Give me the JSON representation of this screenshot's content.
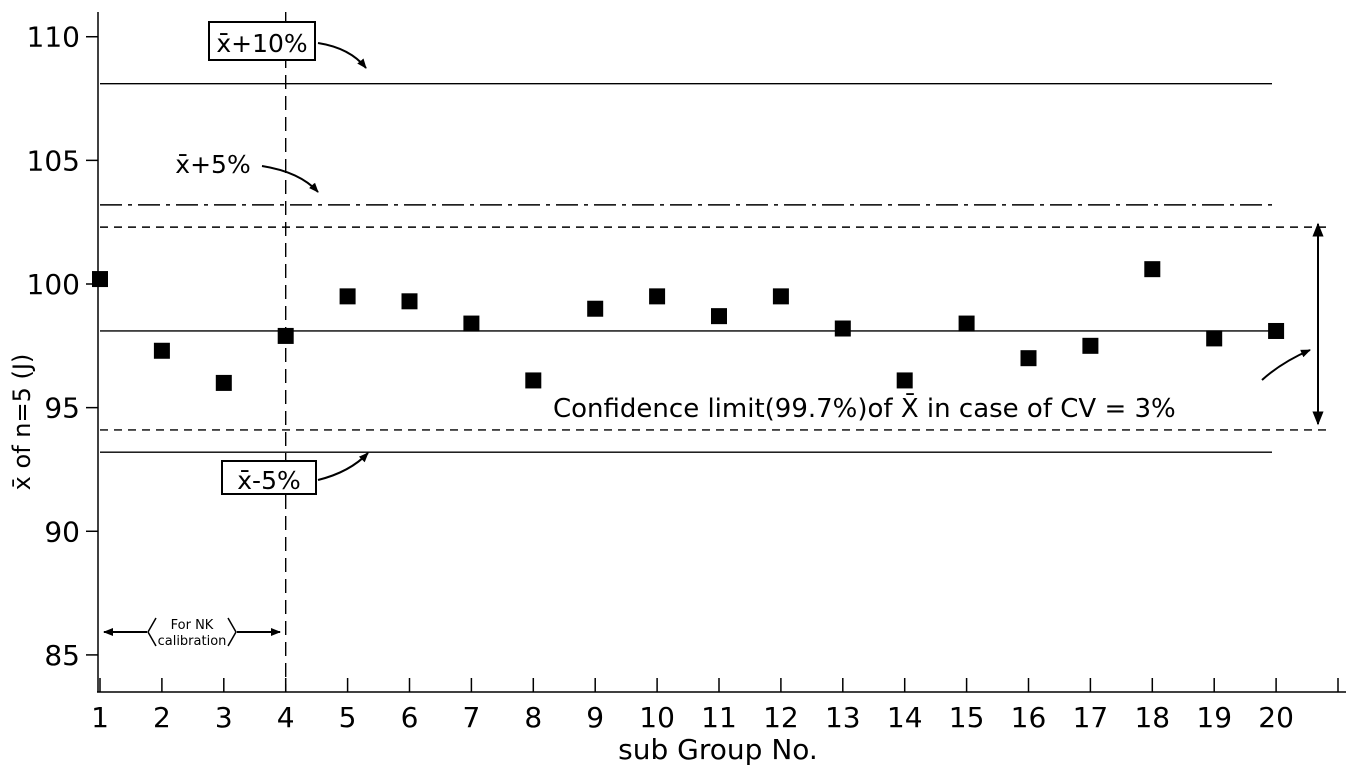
{
  "chart_data": {
    "type": "scatter",
    "xlabel": "sub Group No.",
    "ylabel": "x̄ of n=5 (J)",
    "x_ticks": [
      1,
      2,
      3,
      4,
      5,
      6,
      7,
      8,
      9,
      10,
      11,
      12,
      13,
      14,
      15,
      16,
      17,
      18,
      19,
      20
    ],
    "y_ticks": [
      85,
      90,
      95,
      100,
      105,
      110
    ],
    "xlim": [
      1,
      21
    ],
    "ylim": [
      83.5,
      111
    ],
    "grid": false,
    "legend": "none",
    "series": [
      {
        "x": [
          1,
          2,
          3,
          4,
          5,
          6,
          7,
          8,
          9,
          10,
          11,
          12,
          13,
          14,
          15,
          16,
          17,
          18,
          19,
          20
        ],
        "y": [
          100.2,
          97.3,
          96.0,
          97.9,
          99.5,
          99.3,
          98.4,
          96.1,
          99.0,
          99.5,
          98.7,
          99.5,
          98.2,
          96.1,
          98.4,
          97.0,
          97.5,
          100.6,
          97.8,
          98.1
        ]
      }
    ],
    "reference_lines": [
      {
        "label": "x̄̄+10%",
        "value": 108.1,
        "style": "solid"
      },
      {
        "label": "x̄̄+5%",
        "value": 103.2,
        "style": "dashdot"
      },
      {
        "label": "",
        "value": 102.3,
        "style": "dashed"
      },
      {
        "label": "",
        "value": 98.1,
        "style": "solid"
      },
      {
        "label": "",
        "value": 94.1,
        "style": "dashed"
      },
      {
        "label": "x̄̄-5%",
        "value": 93.2,
        "style": "solid"
      }
    ],
    "vertical_line": {
      "x": 4,
      "style": "dashed"
    },
    "annotations": {
      "confidence": "Confidence limit(99.7%)of X̄ in case of CV = 3%",
      "calibration_line1": "For NK",
      "calibration_line2": "calibration"
    }
  }
}
